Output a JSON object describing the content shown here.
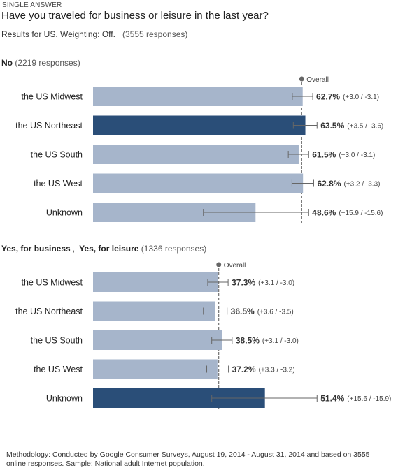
{
  "header": {
    "type_label": "SINGLE ANSWER",
    "question": "Have you traveled for business or leisure in the last year?",
    "meta": "Results for US. Weighting: Off.",
    "responses": "(3555 responses)"
  },
  "sections": [
    {
      "title_parts": [
        "No"
      ],
      "responses": "(2219 responses)"
    },
    {
      "title_parts": [
        "Yes, for business",
        "Yes, for leisure"
      ],
      "separator": ",",
      "responses": "(1336 responses)"
    }
  ],
  "footer": "Methodology: Conducted by Google Consumer Surveys, August 19, 2014 - August 31, 2014 and based on 3555 online responses. Sample: National adult Internet population.",
  "colors": {
    "bar": "#a6b5cb",
    "bar_highlight": "#2a4e78",
    "error_bar": "#666666",
    "overall_line": "#555555"
  },
  "chart_data": [
    {
      "type": "bar",
      "orientation": "horizontal",
      "group": "No",
      "overall_label": "Overall",
      "categories": [
        "the US Midwest",
        "the US Northeast",
        "the US South",
        "the US West",
        "Unknown"
      ],
      "values": [
        62.7,
        63.5,
        61.5,
        62.8,
        48.6
      ],
      "value_labels": [
        "62.7%",
        "63.5%",
        "61.5%",
        "62.8%",
        "48.6%"
      ],
      "error_plus": [
        3.0,
        3.5,
        3.0,
        3.2,
        15.9
      ],
      "error_minus": [
        3.1,
        3.6,
        3.1,
        3.3,
        15.6
      ],
      "error_labels": [
        "(+3.0 / -3.1)",
        "(+3.5 / -3.6)",
        "(+3.0 / -3.1)",
        "(+3.2 / -3.3)",
        "(+15.9 / -15.6)"
      ],
      "overall": 62.4,
      "highlight_index": 1,
      "xlim": [
        0,
        100
      ]
    },
    {
      "type": "bar",
      "orientation": "horizontal",
      "group": "Yes, for business, Yes, for leisure",
      "overall_label": "Overall",
      "categories": [
        "the US Midwest",
        "the US Northeast",
        "the US South",
        "the US West",
        "Unknown"
      ],
      "values": [
        37.3,
        36.5,
        38.5,
        37.2,
        51.4
      ],
      "value_labels": [
        "37.3%",
        "36.5%",
        "38.5%",
        "37.2%",
        "51.4%"
      ],
      "error_plus": [
        3.1,
        3.6,
        3.1,
        3.3,
        15.6
      ],
      "error_minus": [
        3.0,
        3.5,
        3.0,
        3.2,
        15.9
      ],
      "error_labels": [
        "(+3.1 / -3.0)",
        "(+3.6 / -3.5)",
        "(+3.1 / -3.0)",
        "(+3.3 / -3.2)",
        "(+15.6 / -15.9)"
      ],
      "overall": 37.6,
      "highlight_index": 4,
      "xlim": [
        0,
        100
      ]
    }
  ]
}
